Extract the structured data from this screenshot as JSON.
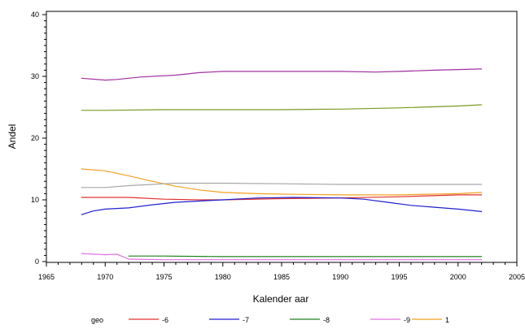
{
  "chart_data": {
    "type": "line",
    "xlabel": "Kalender aar",
    "ylabel": "Andel",
    "xlim": [
      1965,
      2005
    ],
    "ylim": [
      0,
      40
    ],
    "xticks": [
      1965,
      1970,
      1975,
      1980,
      1985,
      1990,
      1995,
      2000,
      2005
    ],
    "yticks": [
      0,
      10,
      20,
      30,
      40
    ],
    "grid": false,
    "legend": {
      "title": "geo",
      "position": "bottom"
    },
    "series": [
      {
        "name": "-6",
        "color": "#e03030",
        "points": [
          [
            1968,
            10.4
          ],
          [
            1970,
            10.4
          ],
          [
            1972,
            10.4
          ],
          [
            1975,
            10.1
          ],
          [
            1978,
            10.0
          ],
          [
            1980,
            10.0
          ],
          [
            1985,
            10.2
          ],
          [
            1990,
            10.3
          ],
          [
            1995,
            10.5
          ],
          [
            2000,
            10.8
          ],
          [
            2002,
            10.8
          ]
        ]
      },
      {
        "name": "-7",
        "color": "#2020d0",
        "points": [
          [
            1968,
            7.6
          ],
          [
            1969,
            8.2
          ],
          [
            1970,
            8.5
          ],
          [
            1972,
            8.7
          ],
          [
            1974,
            9.2
          ],
          [
            1976,
            9.6
          ],
          [
            1978,
            9.8
          ],
          [
            1980,
            10.0
          ],
          [
            1983,
            10.3
          ],
          [
            1986,
            10.4
          ],
          [
            1990,
            10.3
          ],
          [
            1992,
            10.1
          ],
          [
            1994,
            9.6
          ],
          [
            1996,
            9.1
          ],
          [
            1998,
            8.8
          ],
          [
            2000,
            8.5
          ],
          [
            2002,
            8.1
          ]
        ]
      },
      {
        "name": "-8",
        "color": "#208020",
        "points": [
          [
            1972,
            0.9
          ],
          [
            1975,
            0.9
          ],
          [
            1980,
            0.8
          ],
          [
            1985,
            0.8
          ],
          [
            1990,
            0.8
          ],
          [
            1995,
            0.8
          ],
          [
            2000,
            0.8
          ],
          [
            2002,
            0.8
          ]
        ]
      },
      {
        "name": "-9",
        "color": "#e070e0",
        "points": [
          [
            1968,
            1.3
          ],
          [
            1969,
            1.2
          ],
          [
            1970,
            1.1
          ],
          [
            1971,
            1.2
          ],
          [
            1972,
            0.4
          ],
          [
            1975,
            0.3
          ],
          [
            1980,
            0.3
          ],
          [
            1985,
            0.3
          ],
          [
            1990,
            0.3
          ],
          [
            1995,
            0.3
          ],
          [
            2000,
            0.3
          ],
          [
            2002,
            0.3
          ]
        ]
      },
      {
        "name": "1",
        "color": "#f0a020",
        "points": [
          [
            1968,
            15.0
          ],
          [
            1970,
            14.7
          ],
          [
            1972,
            13.9
          ],
          [
            1974,
            13.0
          ],
          [
            1976,
            12.2
          ],
          [
            1978,
            11.6
          ],
          [
            1980,
            11.2
          ],
          [
            1983,
            11.0
          ],
          [
            1986,
            10.9
          ],
          [
            1990,
            10.8
          ],
          [
            1995,
            10.8
          ],
          [
            2000,
            11.0
          ],
          [
            2002,
            11.2
          ]
        ]
      },
      {
        "name": "",
        "color": "#a8a8a8",
        "points": [
          [
            1968,
            12.0
          ],
          [
            1970,
            12.0
          ],
          [
            1972,
            12.3
          ],
          [
            1974,
            12.5
          ],
          [
            1976,
            12.7
          ],
          [
            1980,
            12.7
          ],
          [
            1985,
            12.6
          ],
          [
            1990,
            12.5
          ],
          [
            1995,
            12.5
          ],
          [
            2000,
            12.5
          ],
          [
            2002,
            12.5
          ]
        ]
      },
      {
        "name": "",
        "color": "#7a9a20",
        "points": [
          [
            1968,
            24.5
          ],
          [
            1970,
            24.5
          ],
          [
            1975,
            24.6
          ],
          [
            1980,
            24.6
          ],
          [
            1985,
            24.6
          ],
          [
            1990,
            24.7
          ],
          [
            1995,
            24.9
          ],
          [
            2000,
            25.2
          ],
          [
            2002,
            25.4
          ]
        ]
      },
      {
        "name": "",
        "color": "#a030a0",
        "points": [
          [
            1968,
            29.7
          ],
          [
            1970,
            29.4
          ],
          [
            1971,
            29.5
          ],
          [
            1973,
            29.9
          ],
          [
            1976,
            30.2
          ],
          [
            1978,
            30.6
          ],
          [
            1980,
            30.8
          ],
          [
            1985,
            30.8
          ],
          [
            1990,
            30.8
          ],
          [
            1993,
            30.7
          ],
          [
            1995,
            30.8
          ],
          [
            1998,
            31.0
          ],
          [
            2000,
            31.1
          ],
          [
            2002,
            31.2
          ]
        ]
      }
    ]
  }
}
